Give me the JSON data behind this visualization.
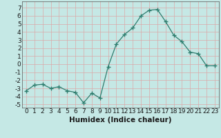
{
  "x": [
    0,
    1,
    2,
    3,
    4,
    5,
    6,
    7,
    8,
    9,
    10,
    11,
    12,
    13,
    14,
    15,
    16,
    17,
    18,
    19,
    20,
    21,
    22,
    23
  ],
  "y": [
    -3.3,
    -2.6,
    -2.5,
    -3.0,
    -2.8,
    -3.3,
    -3.5,
    -4.8,
    -3.6,
    -4.2,
    -0.3,
    2.5,
    3.7,
    4.5,
    6.0,
    6.7,
    6.8,
    5.3,
    3.6,
    2.8,
    1.5,
    1.3,
    -0.2,
    -0.2
  ],
  "xlabel": "Humidex (Indice chaleur)",
  "ylim": [
    -5.4,
    7.8
  ],
  "xlim": [
    -0.5,
    23.5
  ],
  "xticks": [
    0,
    1,
    2,
    3,
    4,
    5,
    6,
    7,
    8,
    9,
    10,
    11,
    12,
    13,
    14,
    15,
    16,
    17,
    18,
    19,
    20,
    21,
    22,
    23
  ],
  "yticks": [
    -5,
    -4,
    -3,
    -2,
    -1,
    0,
    1,
    2,
    3,
    4,
    5,
    6,
    7
  ],
  "line_color": "#2e7d6e",
  "marker": "+",
  "bg_color": "#c5e8e5",
  "grid_color": "#dba8a8",
  "label_fontsize": 7.5,
  "tick_fontsize": 6.5
}
